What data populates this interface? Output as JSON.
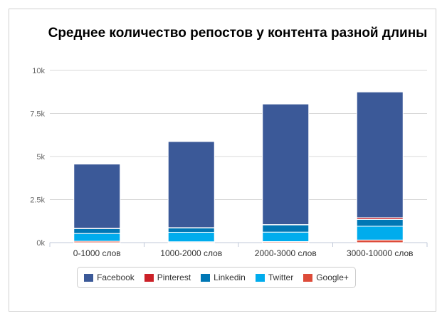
{
  "chart_data": {
    "type": "bar",
    "stacked": true,
    "title": "Среднее количество репостов у контента разной длины",
    "categories": [
      "0-1000 слов",
      "1000-2000 слов",
      "2000-3000 слов",
      "3000-10000 слов"
    ],
    "series": [
      {
        "name": "Facebook",
        "color": "#3b5998",
        "values": [
          3730,
          5000,
          7000,
          7300
        ]
      },
      {
        "name": "Pinterest",
        "color": "#cb2027",
        "values": [
          20,
          20,
          20,
          100
        ]
      },
      {
        "name": "Linkedin",
        "color": "#0077b5",
        "values": [
          280,
          250,
          420,
          400
        ]
      },
      {
        "name": "Twitter",
        "color": "#00aced",
        "values": [
          450,
          550,
          550,
          800
        ]
      },
      {
        "name": "Google+",
        "color": "#dd4b39",
        "values": [
          80,
          50,
          60,
          150
        ]
      }
    ],
    "stack_order_bottom_to_top": [
      "Google+",
      "Twitter",
      "Linkedin",
      "Pinterest",
      "Facebook"
    ],
    "ylim": [
      0,
      10000
    ],
    "yticks": [
      0,
      2500,
      5000,
      7500,
      10000
    ],
    "ytick_labels": [
      "0k",
      "2.5k",
      "5k",
      "7.5k",
      "10k"
    ],
    "grid": true,
    "legend_position": "bottom",
    "xlabel": "",
    "ylabel": ""
  }
}
